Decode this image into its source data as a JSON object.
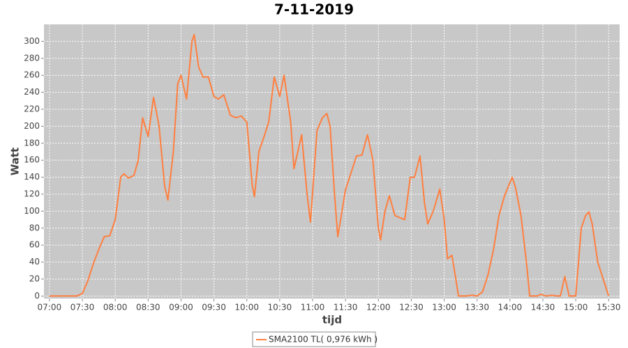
{
  "chart_data": {
    "type": "line",
    "title": "7-11-2019",
    "xlabel": "tijd",
    "ylabel": "Watt",
    "x": [
      "07:00",
      "07:10",
      "07:20",
      "07:25",
      "07:30",
      "07:35",
      "07:40",
      "07:45",
      "07:50",
      "07:55",
      "08:00",
      "08:05",
      "08:08",
      "08:12",
      "08:17",
      "08:21",
      "08:25",
      "08:30",
      "08:35",
      "08:40",
      "08:45",
      "08:48",
      "08:53",
      "08:57",
      "09:00",
      "09:05",
      "09:10",
      "09:12",
      "09:16",
      "09:20",
      "09:25",
      "09:30",
      "09:34",
      "09:39",
      "09:45",
      "09:50",
      "09:55",
      "10:00",
      "10:05",
      "10:07",
      "10:11",
      "10:15",
      "10:20",
      "10:25",
      "10:30",
      "10:34",
      "10:40",
      "10:43",
      "10:50",
      "10:55",
      "10:58",
      "11:04",
      "11:09",
      "11:13",
      "11:16",
      "11:20",
      "11:23",
      "11:30",
      "11:35",
      "11:40",
      "11:45",
      "11:50",
      "11:55",
      "12:00",
      "12:02",
      "12:06",
      "12:10",
      "12:15",
      "12:20",
      "12:24",
      "12:29",
      "12:33",
      "12:38",
      "12:42",
      "12:45",
      "12:50",
      "12:56",
      "13:00",
      "13:03",
      "13:07",
      "13:10",
      "13:13",
      "13:20",
      "13:25",
      "13:30",
      "13:35",
      "13:40",
      "13:45",
      "13:50",
      "13:55",
      "14:02",
      "14:05",
      "14:10",
      "14:15",
      "14:18",
      "14:25",
      "14:28",
      "14:33",
      "14:38",
      "14:43",
      "14:46",
      "14:50",
      "14:54",
      "15:00",
      "15:05",
      "15:09",
      "15:12",
      "15:15",
      "15:20",
      "15:25",
      "15:30"
    ],
    "series": [
      {
        "name": "SMA2100 TL( 0,976 kWh )",
        "color": "#ff7f3f",
        "values": [
          0,
          0,
          0,
          0,
          3,
          18,
          38,
          55,
          70,
          71,
          90,
          140,
          144,
          139,
          142,
          160,
          210,
          188,
          234,
          200,
          130,
          113,
          170,
          250,
          260,
          232,
          300,
          308,
          270,
          258,
          258,
          235,
          232,
          237,
          213,
          210,
          212,
          205,
          130,
          117,
          170,
          185,
          205,
          258,
          235,
          260,
          205,
          150,
          190,
          120,
          87,
          195,
          210,
          215,
          200,
          120,
          70,
          125,
          145,
          165,
          166,
          190,
          160,
          80,
          66,
          100,
          118,
          95,
          92,
          90,
          140,
          140,
          165,
          110,
          85,
          100,
          126,
          90,
          44,
          48,
          25,
          0,
          0,
          1,
          0,
          5,
          25,
          55,
          95,
          118,
          140,
          128,
          95,
          40,
          0,
          0,
          2,
          0,
          1,
          0,
          0,
          23,
          0,
          0,
          80,
          95,
          99,
          85,
          40,
          20,
          0
        ]
      }
    ],
    "xlim": [
      "06:55",
      "15:40"
    ],
    "xticks": [
      "07:00",
      "07:30",
      "08:00",
      "08:30",
      "09:00",
      "09:30",
      "10:00",
      "10:30",
      "11:00",
      "11:30",
      "12:00",
      "12:30",
      "13:00",
      "13:30",
      "14:00",
      "14:30",
      "15:00",
      "15:30"
    ],
    "ylim": [
      -3,
      320
    ],
    "yticks": [
      0,
      20,
      40,
      60,
      80,
      100,
      120,
      140,
      160,
      180,
      200,
      220,
      240,
      260,
      280,
      300
    ],
    "grid": true,
    "legend": "bottom"
  }
}
